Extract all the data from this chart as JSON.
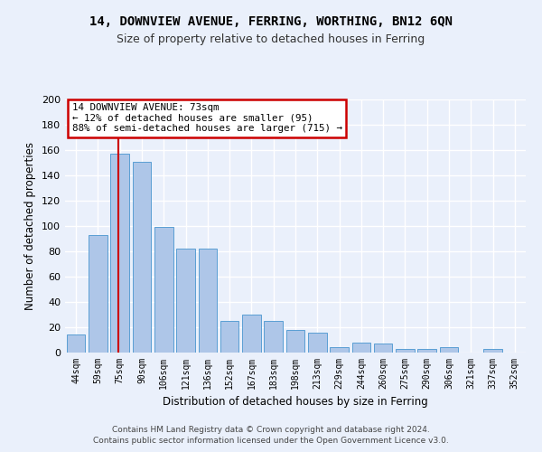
{
  "title1": "14, DOWNVIEW AVENUE, FERRING, WORTHING, BN12 6QN",
  "title2": "Size of property relative to detached houses in Ferring",
  "xlabel": "Distribution of detached houses by size in Ferring",
  "ylabel": "Number of detached properties",
  "categories": [
    "44sqm",
    "59sqm",
    "75sqm",
    "90sqm",
    "106sqm",
    "121sqm",
    "136sqm",
    "152sqm",
    "167sqm",
    "183sqm",
    "198sqm",
    "213sqm",
    "229sqm",
    "244sqm",
    "260sqm",
    "275sqm",
    "290sqm",
    "306sqm",
    "321sqm",
    "337sqm",
    "352sqm"
  ],
  "values": [
    14,
    93,
    157,
    151,
    99,
    82,
    82,
    25,
    30,
    25,
    18,
    16,
    4,
    8,
    7,
    3,
    3,
    4,
    0,
    3,
    0
  ],
  "bar_color": "#aec6e8",
  "bar_edge_color": "#5a9fd4",
  "background_color": "#eaf0fb",
  "grid_color": "#ffffff",
  "vline_color": "#cc0000",
  "vline_pos": 1.94,
  "annotation_title": "14 DOWNVIEW AVENUE: 73sqm",
  "annotation_line1": "← 12% of detached houses are smaller (95)",
  "annotation_line2": "88% of semi-detached houses are larger (715) →",
  "annotation_box_color": "#ffffff",
  "annotation_box_edge": "#cc0000",
  "footer1": "Contains HM Land Registry data © Crown copyright and database right 2024.",
  "footer2": "Contains public sector information licensed under the Open Government Licence v3.0.",
  "ylim": [
    0,
    200
  ],
  "yticks": [
    0,
    20,
    40,
    60,
    80,
    100,
    120,
    140,
    160,
    180,
    200
  ]
}
